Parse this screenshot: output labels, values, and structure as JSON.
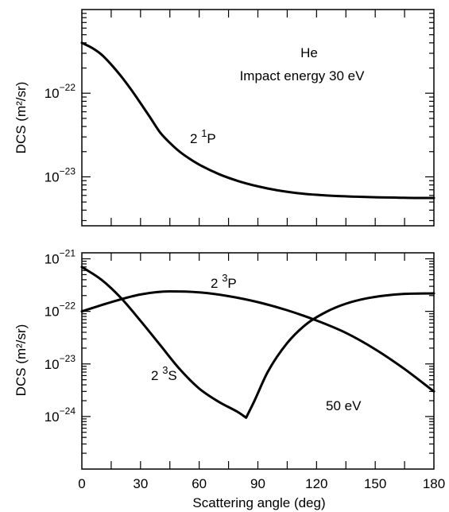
{
  "chart_data": [
    {
      "type": "line",
      "ylabel": "DCS (m²/sr)",
      "yscale": "log",
      "xlim": [
        0,
        180
      ],
      "ylim": [
        2.6e-24,
        1e-21
      ],
      "y_ticks": [
        {
          "value": 1e-22,
          "base": "10",
          "exp": "−22"
        },
        {
          "value": 1e-23,
          "base": "10",
          "exp": "−23"
        }
      ],
      "annotations": {
        "line1": "He",
        "line2": "Impact energy 30 eV"
      },
      "series": [
        {
          "name": "2 1P",
          "label_main": "2 ",
          "label_sup": "1",
          "label_tail": "P",
          "x": [
            0,
            5,
            10,
            15,
            20,
            25,
            30,
            35,
            40,
            45,
            50,
            55,
            60,
            70,
            80,
            90,
            100,
            110,
            120,
            130,
            140,
            150,
            160,
            170,
            180
          ],
          "y": [
            4e-22,
            3.5e-22,
            2.9e-22,
            2.2e-22,
            1.6e-22,
            1.12e-22,
            7.6e-23,
            5.1e-23,
            3.4e-23,
            2.55e-23,
            2e-23,
            1.65e-23,
            1.4e-23,
            1.08e-23,
            8.9e-24,
            7.7e-24,
            6.9e-24,
            6.4e-24,
            6.1e-24,
            5.9e-24,
            5.8e-24,
            5.7e-24,
            5.65e-24,
            5.6e-24,
            5.6e-24
          ]
        }
      ]
    },
    {
      "type": "line",
      "ylabel": "DCS (m²/sr)",
      "xlabel": "Scattering angle (deg)",
      "yscale": "log",
      "xlim": [
        0,
        180
      ],
      "ylim": [
        1e-25,
        1.3e-21
      ],
      "x_ticks": [
        "0",
        "30",
        "60",
        "90",
        "120",
        "150",
        "180"
      ],
      "y_ticks": [
        {
          "value": 1e-21,
          "base": "10",
          "exp": "−21"
        },
        {
          "value": 1e-22,
          "base": "10",
          "exp": "−22"
        },
        {
          "value": 1e-23,
          "base": "10",
          "exp": "−23"
        },
        {
          "value": 1e-24,
          "base": "10",
          "exp": "−24"
        }
      ],
      "annotations": {
        "energy": "50 eV"
      },
      "series": [
        {
          "name": "2 3P",
          "label_main": "2 ",
          "label_sup": "3",
          "label_tail": "P",
          "x": [
            0,
            15,
            30,
            45,
            60,
            75,
            90,
            105,
            120,
            135,
            150,
            165,
            180
          ],
          "y": [
            1e-22,
            1.5e-22,
            2.1e-22,
            2.4e-22,
            2.3e-22,
            1.95e-22,
            1.5e-22,
            1.05e-22,
            6.7e-23,
            3.9e-23,
            1.9e-23,
            8e-24,
            3e-24
          ]
        },
        {
          "name": "2 3S",
          "label_main": "2 ",
          "label_sup": "3",
          "label_tail": "S",
          "x": [
            0,
            10,
            20,
            30,
            40,
            50,
            60,
            70,
            80,
            84,
            88,
            95,
            105,
            115,
            125,
            135,
            145,
            155,
            165,
            180
          ],
          "y": [
            7e-22,
            4e-22,
            1.8e-22,
            6.6e-23,
            2.3e-23,
            8e-24,
            3.4e-24,
            1.9e-24,
            1.2e-24,
            9.5e-25,
            1.9e-24,
            7e-24,
            2.5e-23,
            5.8e-23,
            9.8e-23,
            1.4e-22,
            1.75e-22,
            2e-22,
            2.15e-22,
            2.2e-22
          ]
        }
      ]
    }
  ]
}
